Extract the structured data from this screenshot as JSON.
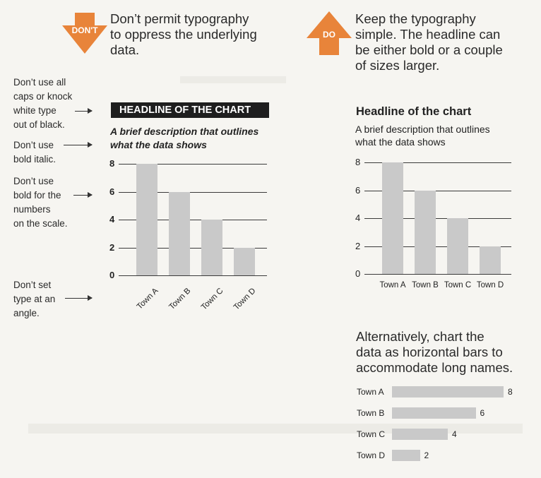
{
  "dont_arrow": {
    "label": "DON'T",
    "color": "#e8843a"
  },
  "do_arrow": {
    "label": "DO",
    "color": "#e8843a"
  },
  "dont_text": [
    "Don’t permit typography",
    "to oppress the underlying",
    "data."
  ],
  "do_text": [
    "Keep the typography",
    "simple. The headline can",
    "be either bold or a couple",
    "of sizes larger."
  ],
  "notes": [
    [
      "Don’t use all",
      "caps or knock",
      "white type",
      "out of black."
    ],
    [
      "Don’t use",
      "bold italic."
    ],
    [
      "Don’t use",
      "bold for the",
      "numbers",
      "on the scale."
    ],
    [
      "Don’t set",
      "type at an",
      "angle."
    ]
  ],
  "bad_chart": {
    "headline": "HEADLINE OF THE CHART",
    "description": [
      "A brief description that outlines",
      "what the data shows"
    ]
  },
  "good_chart": {
    "headline": "Headline of the chart",
    "description": [
      "A brief description that outlines",
      "what the data shows"
    ]
  },
  "alternative_text": [
    "Alternatively, chart the",
    "data as horizontal bars to",
    "accommodate long names."
  ],
  "chart_data": [
    {
      "type": "bar",
      "title": "HEADLINE OF THE CHART",
      "subtitle": "A brief description that outlines what the data shows",
      "categories": [
        "Town A",
        "Town B",
        "Town C",
        "Town D"
      ],
      "values": [
        8,
        6,
        4,
        2
      ],
      "yticks": [
        "0",
        "2",
        "4",
        "6",
        "8"
      ],
      "ylim": [
        0,
        8
      ],
      "grid": true
    },
    {
      "type": "bar",
      "title": "Headline of the chart",
      "subtitle": "A brief description that outlines what the data shows",
      "categories": [
        "Town A",
        "Town B",
        "Town C",
        "Town D"
      ],
      "values": [
        8,
        6,
        4,
        2
      ],
      "yticks": [
        "0",
        "2",
        "4",
        "6",
        "8"
      ],
      "ylim": [
        0,
        8
      ],
      "grid": true
    },
    {
      "type": "bar",
      "orientation": "horizontal",
      "categories": [
        "Town A",
        "Town B",
        "Town C",
        "Town D"
      ],
      "values": [
        8,
        6,
        4,
        2
      ],
      "value_labels": [
        "8",
        "6",
        "4",
        "2"
      ]
    }
  ]
}
